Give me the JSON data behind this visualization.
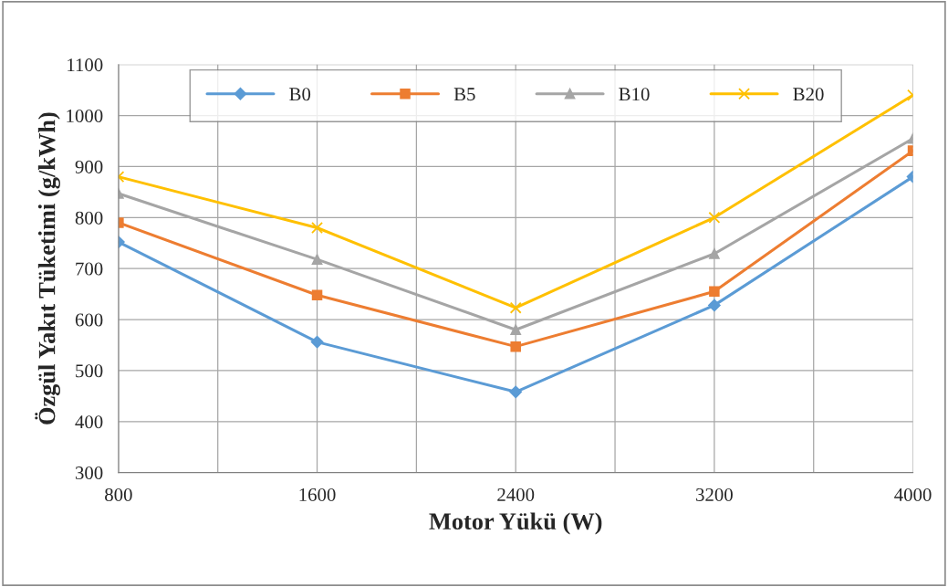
{
  "chart_data": {
    "type": "line",
    "xlabel": "Motor Yükü (W)",
    "ylabel": "Özgül Yakıt Tüketimi (g/kWh)",
    "x": [
      800,
      1600,
      2400,
      3200,
      4000
    ],
    "series": [
      {
        "name": "B0",
        "color": "#5b9bd5",
        "marker": "diamond",
        "values": [
          752,
          556,
          458,
          628,
          880
        ]
      },
      {
        "name": "B5",
        "color": "#ed7d31",
        "marker": "square",
        "values": [
          790,
          648,
          547,
          655,
          931
        ]
      },
      {
        "name": "B10",
        "color": "#a5a5a5",
        "marker": "triangle",
        "values": [
          847,
          718,
          580,
          729,
          955
        ]
      },
      {
        "name": "B20",
        "color": "#ffc000",
        "marker": "cross",
        "values": [
          880,
          780,
          623,
          800,
          1040
        ]
      }
    ],
    "xlim": [
      800,
      4000
    ],
    "xticks": [
      800,
      {
        "value": 1200,
        "label": null
      },
      1600,
      {
        "value": 2000,
        "label": null
      },
      2400,
      {
        "value": 2800,
        "label": null
      },
      3200,
      {
        "value": 3600,
        "label": null
      },
      4000
    ],
    "ylim": [
      300,
      1100
    ],
    "yticks": [
      300,
      400,
      500,
      600,
      700,
      800,
      900,
      1000,
      1100
    ],
    "grid": true,
    "legend": "top",
    "line_style": "solid"
  }
}
